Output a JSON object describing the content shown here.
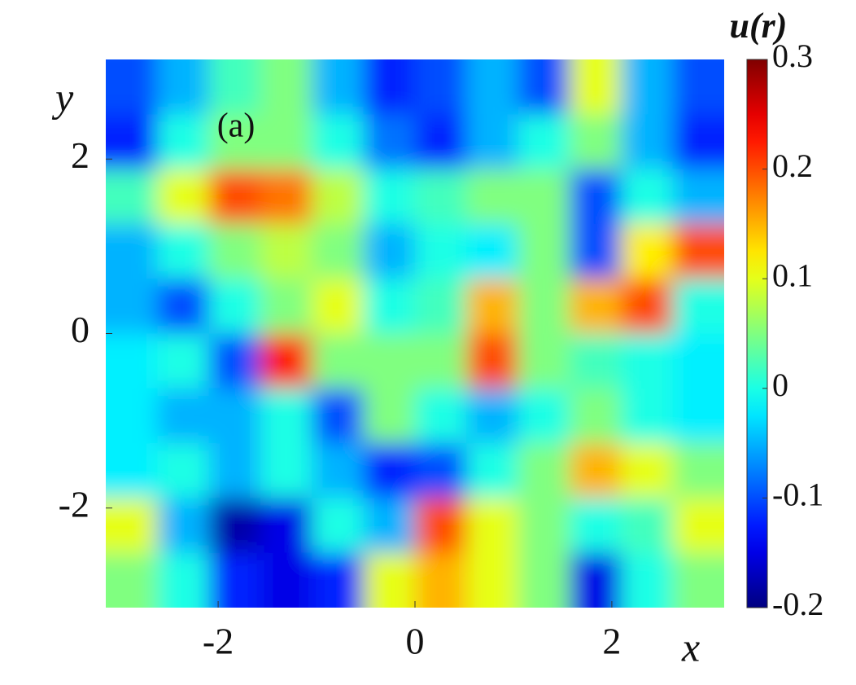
{
  "chart_data": {
    "type": "heatmap",
    "x_label": "x",
    "y_label": "y",
    "annotation": "(a)",
    "colorbar_label": "u(r)",
    "xlim": [
      -3.1416,
      3.1416
    ],
    "ylim": [
      -3.1416,
      3.1416
    ],
    "xticks": [
      -2,
      0,
      2
    ],
    "yticks": [
      -2,
      0,
      2
    ],
    "colormap": "jet",
    "clim": [
      -0.2,
      0.3
    ],
    "cticks": [
      -0.2,
      -0.1,
      0,
      0.1,
      0.2,
      0.3
    ],
    "z": [
      [
        -0.1,
        -0.05,
        0.02,
        0.05,
        -0.05,
        -0.12,
        -0.1,
        -0.05,
        -0.1,
        0.1,
        -0.05,
        -0.1
      ],
      [
        -0.12,
        0,
        0.05,
        0.05,
        0,
        -0.08,
        -0.12,
        -0.05,
        0,
        0.05,
        -0.05,
        -0.12
      ],
      [
        0.02,
        0.1,
        0.2,
        0.18,
        0.08,
        0,
        0.02,
        0.05,
        0.05,
        -0.1,
        0,
        -0.05
      ],
      [
        -0.05,
        0,
        0.05,
        0.08,
        0.05,
        -0.05,
        0,
        -0.02,
        0.05,
        -0.1,
        0.12,
        0.2
      ],
      [
        -0.05,
        -0.1,
        0,
        0.05,
        0.1,
        0,
        0.02,
        0.15,
        0.05,
        0.15,
        0.2,
        0
      ],
      [
        -0.02,
        0,
        -0.1,
        0.22,
        0.05,
        0.05,
        0.05,
        0.2,
        0.05,
        0.02,
        0,
        -0.02
      ],
      [
        -0.02,
        -0.05,
        -0.05,
        0,
        -0.1,
        0.05,
        0,
        -0.05,
        0,
        0.05,
        0,
        -0.02
      ],
      [
        -0.02,
        0,
        -0.05,
        0,
        -0.05,
        -0.12,
        -0.1,
        0,
        0.05,
        0.15,
        0.1,
        0.05
      ],
      [
        0.1,
        -0.05,
        -0.18,
        -0.15,
        0,
        -0.05,
        0.2,
        0.1,
        0.05,
        0,
        0.02,
        0.1
      ],
      [
        0.05,
        0,
        -0.12,
        -0.15,
        -0.12,
        0.1,
        0.15,
        0.1,
        0.05,
        -0.15,
        0,
        0.05
      ]
    ]
  }
}
